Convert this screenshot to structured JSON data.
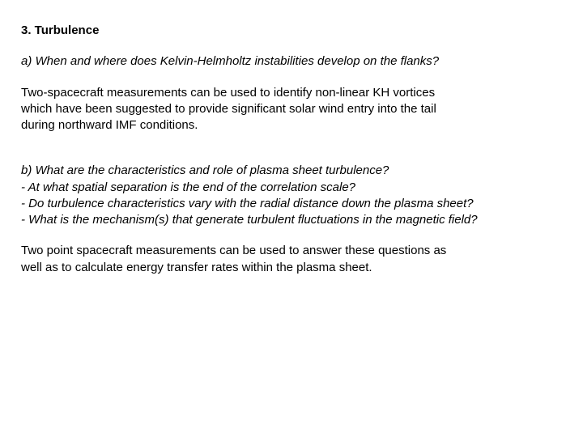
{
  "heading": "3. Turbulence",
  "sectionA": {
    "question": "a) When and where does Kelvin-Helmholtz instabilities develop on the flanks?",
    "para_l1": "Two-spacecraft measurements can be used to identify non-linear KH vortices",
    "para_l2": "which have been suggested to provide significant solar wind entry into the tail",
    "para_l3": "during northward IMF conditions."
  },
  "sectionB": {
    "main": "b) What are the characteristics and role of plasma sheet turbulence?",
    "sub1": "- At what spatial separation is the end of the correlation scale?",
    "sub2": "- Do turbulence characteristics vary with the radial distance down the plasma sheet?",
    "sub3": "- What is the mechanism(s) that generate turbulent fluctuations in the magnetic field?",
    "para_l1": "Two point spacecraft measurements can be used to answer these questions as",
    "para_l2": " well as to calculate energy transfer rates within the plasma sheet."
  }
}
